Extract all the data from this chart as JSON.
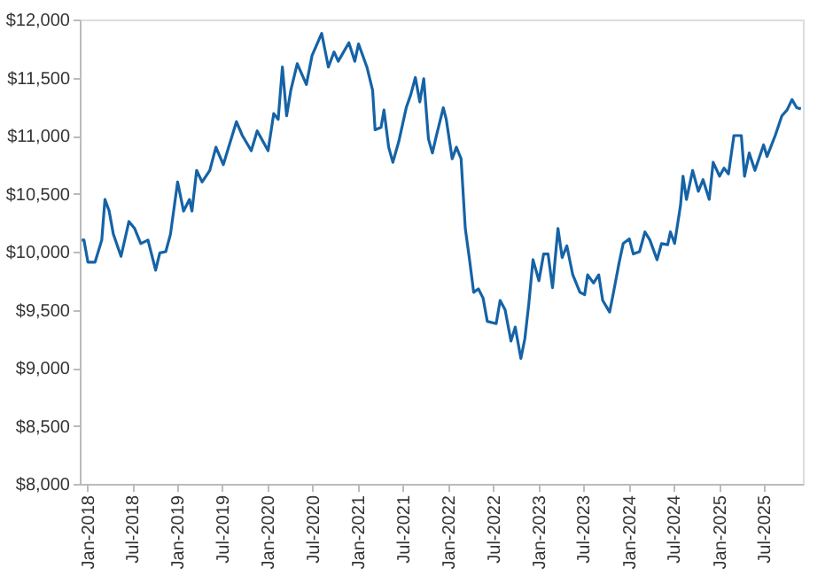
{
  "chart_data": {
    "type": "line",
    "series": [
      {
        "color": "#1563a6",
        "x": [
          "2017-12-09",
          "2017-12-18",
          "2018-01-03",
          "2018-02-01",
          "2018-02-28",
          "2018-03-13",
          "2018-03-30",
          "2018-04-16",
          "2018-05-17",
          "2018-06-18",
          "2018-07-11",
          "2018-08-05",
          "2018-09-03",
          "2018-10-04",
          "2018-10-21",
          "2018-11-14",
          "2018-12-03",
          "2019-01-01",
          "2019-01-25",
          "2019-02-18",
          "2019-02-28",
          "2019-03-19",
          "2019-04-10",
          "2019-05-11",
          "2019-06-05",
          "2019-07-05",
          "2019-08-27",
          "2019-09-20",
          "2019-10-26",
          "2019-11-19",
          "2020-01-02",
          "2020-01-25",
          "2020-02-12",
          "2020-02-29",
          "2020-03-17",
          "2020-04-03",
          "2020-04-29",
          "2020-06-05",
          "2020-06-28",
          "2020-08-06",
          "2020-09-02",
          "2020-09-25",
          "2020-10-12",
          "2020-11-24",
          "2020-12-18",
          "2021-01-02",
          "2021-02-05",
          "2021-02-28",
          "2021-03-10",
          "2021-04-03",
          "2021-04-15",
          "2021-05-04",
          "2021-05-21",
          "2021-06-14",
          "2021-07-14",
          "2021-08-01",
          "2021-08-20",
          "2021-09-07",
          "2021-09-23",
          "2021-10-12",
          "2021-10-28",
          "2021-11-12",
          "2021-12-11",
          "2021-12-23",
          "2022-01-16",
          "2022-02-02",
          "2022-02-21",
          "2022-03-10",
          "2022-03-26",
          "2022-04-13",
          "2022-05-02",
          "2022-05-21",
          "2022-06-07",
          "2022-07-13",
          "2022-07-29",
          "2022-08-18",
          "2022-09-11",
          "2022-09-28",
          "2022-10-21",
          "2022-11-06",
          "2022-11-22",
          "2022-12-09",
          "2023-01-02",
          "2023-01-21",
          "2023-02-08",
          "2023-02-26",
          "2023-03-20",
          "2023-04-06",
          "2023-04-25",
          "2023-05-19",
          "2023-06-17",
          "2023-07-06",
          "2023-07-18",
          "2023-08-11",
          "2023-09-01",
          "2023-09-17",
          "2023-10-15",
          "2023-10-29",
          "2023-11-22",
          "2023-12-09",
          "2024-01-03",
          "2024-01-19",
          "2024-02-13",
          "2024-03-06",
          "2024-03-26",
          "2024-04-24",
          "2024-05-12",
          "2024-06-06",
          "2024-06-17",
          "2024-07-04",
          "2024-07-28",
          "2024-08-07",
          "2024-08-21",
          "2024-09-15",
          "2024-10-08",
          "2024-10-27",
          "2024-11-21",
          "2024-12-07",
          "2025-01-02",
          "2025-01-20",
          "2025-02-07",
          "2025-03-01",
          "2025-03-31",
          "2025-04-13",
          "2025-05-02",
          "2025-05-25",
          "2025-06-29",
          "2025-07-13",
          "2025-08-15",
          "2025-09-11",
          "2025-10-02",
          "2025-10-22",
          "2025-11-10",
          "2025-11-27"
        ],
        "values": [
          10100,
          10100,
          9910,
          9910,
          10100,
          10450,
          10350,
          10150,
          9960,
          10260,
          10200,
          10070,
          10100,
          9840,
          9990,
          10000,
          10150,
          10600,
          10350,
          10450,
          10350,
          10700,
          10600,
          10700,
          10900,
          10750,
          11120,
          11000,
          10870,
          11040,
          10870,
          11190,
          11140,
          11590,
          11170,
          11390,
          11620,
          11440,
          11690,
          11880,
          11590,
          11720,
          11640,
          11800,
          11640,
          11790,
          11590,
          11390,
          11050,
          11070,
          11220,
          10900,
          10770,
          10950,
          11240,
          11350,
          11500,
          11290,
          11490,
          10970,
          10850,
          10990,
          11240,
          11140,
          10800,
          10900,
          10800,
          10200,
          9950,
          9650,
          9680,
          9600,
          9400,
          9380,
          9580,
          9500,
          9230,
          9350,
          9080,
          9250,
          9550,
          9930,
          9750,
          9980,
          9980,
          9690,
          10200,
          9950,
          10050,
          9800,
          9650,
          9630,
          9800,
          9730,
          9800,
          9580,
          9480,
          9630,
          9900,
          10070,
          10110,
          9980,
          10000,
          10170,
          10100,
          9930,
          10070,
          10060,
          10170,
          10070,
          10400,
          10650,
          10450,
          10700,
          10520,
          10620,
          10450,
          10770,
          10650,
          10720,
          10670,
          11000,
          11000,
          10650,
          10850,
          10700,
          10920,
          10820,
          11000,
          11170,
          11220,
          11310,
          11240,
          11230
        ]
      }
    ],
    "xlim": [
      "2017-12-01",
      "2025-12-05"
    ],
    "xticks": [
      {
        "value": "2018-01",
        "label": "Jan-2018"
      },
      {
        "value": "2018-07",
        "label": "Jul-2018"
      },
      {
        "value": "2019-01",
        "label": "Jan-2019"
      },
      {
        "value": "2019-07",
        "label": "Jul-2019"
      },
      {
        "value": "2020-01",
        "label": "Jan-2020"
      },
      {
        "value": "2020-07",
        "label": "Jul-2020"
      },
      {
        "value": "2021-01",
        "label": "Jan-2021"
      },
      {
        "value": "2021-07",
        "label": "Jul-2021"
      },
      {
        "value": "2022-01",
        "label": "Jan-2022"
      },
      {
        "value": "2022-07",
        "label": "Jul-2022"
      },
      {
        "value": "2023-01",
        "label": "Jan-2023"
      },
      {
        "value": "2023-07",
        "label": "Jul-2023"
      },
      {
        "value": "2024-01",
        "label": "Jan-2024"
      },
      {
        "value": "2024-07",
        "label": "Jul-2024"
      },
      {
        "value": "2025-01",
        "label": "Jan-2025"
      },
      {
        "value": "2025-07",
        "label": "Jul-2025"
      }
    ],
    "ylim": [
      8000,
      12000
    ],
    "yticks": [
      {
        "value": 8000,
        "label": "$8,000"
      },
      {
        "value": 8500,
        "label": "$8,500"
      },
      {
        "value": 9000,
        "label": "$9,000"
      },
      {
        "value": 9500,
        "label": "$9,500"
      },
      {
        "value": 10000,
        "label": "$10,000"
      },
      {
        "value": 10500,
        "label": "$10,500"
      },
      {
        "value": 11000,
        "label": "$11,000"
      },
      {
        "value": 11500,
        "label": "$11,500"
      },
      {
        "value": 12000,
        "label": "$12,000"
      }
    ],
    "grid": false,
    "legend": false,
    "marker": "none",
    "line_style": "solid"
  }
}
